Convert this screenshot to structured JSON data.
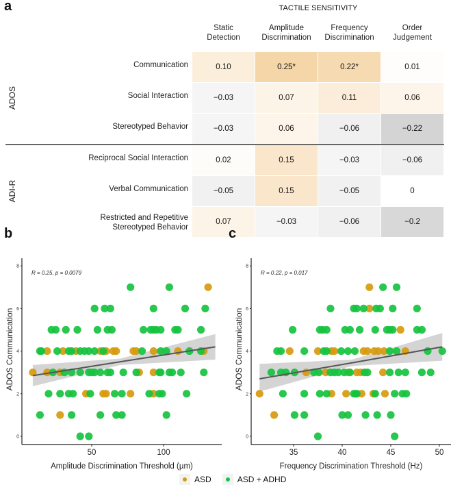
{
  "panels": {
    "a": "a",
    "b": "b",
    "c": "c"
  },
  "colors": {
    "asd": "#d69a0e",
    "asd_adhd": "#16c23f",
    "fit_line": "#555555",
    "ci_band": "#cccccc",
    "pos": "#f5d6a8",
    "neg": "#cfcfcf"
  },
  "chart_data": [
    {
      "type": "heatmap",
      "title": "TACTILE SENSITIVITY",
      "columns": [
        "Static\nDetection",
        "Amplitude\nDiscrimination",
        "Frequency\nDiscrimination",
        "Order\nJudgement"
      ],
      "groups": [
        {
          "name": "ADOS",
          "rows": [
            {
              "label": "Communication",
              "values": [
                "0.10",
                "0.25*",
                "0.22*",
                "0.01"
              ]
            },
            {
              "label": "Social Interaction",
              "values": [
                "−0.03",
                "0.07",
                "0.11",
                "0.06"
              ]
            },
            {
              "label": "Stereotyped Behavior",
              "values": [
                "−0.03",
                "0.06",
                "−0.06",
                "−0.22"
              ]
            }
          ]
        },
        {
          "name": "ADI-R",
          "rows": [
            {
              "label": "Reciprocal Social Interaction",
              "values": [
                "0.02",
                "0.15",
                "−0.03",
                "−0.06"
              ]
            },
            {
              "label": "Verbal Communication",
              "values": [
                "−0.05",
                "0.15",
                "−0.05",
                "0"
              ]
            },
            {
              "label": "Restricted and Repetitive\nStereotyped Behavior",
              "values": [
                "0.07",
                "−0.03",
                "−0.06",
                "−0.2"
              ]
            }
          ]
        }
      ]
    },
    {
      "type": "scatter",
      "annotation": "R = 0.25, p = 0.0079",
      "xlabel": "Amplitude Discrimination Threshold (µm)",
      "ylabel": "ADOS Communication",
      "xlim": [
        1,
        140
      ],
      "ylim": [
        0,
        8.4
      ],
      "xticks": [
        "50",
        "100"
      ],
      "yticks": [
        "0",
        "2",
        "4",
        "6",
        "8"
      ],
      "fit": {
        "x": [
          9,
          70,
          136
        ],
        "y": [
          2.85,
          3.5,
          4.2
        ],
        "ci_lower": [
          2.35,
          3.35,
          3.6
        ],
        "ci_upper": [
          3.35,
          3.65,
          4.8
        ]
      },
      "series": [
        {
          "name": "ASD",
          "points": [
            [
              131,
              7
            ],
            [
              19,
              4
            ],
            [
              30,
              4
            ],
            [
              39,
              4
            ],
            [
              56,
              4
            ],
            [
              60,
              4
            ],
            [
              65,
              4
            ],
            [
              67,
              4
            ],
            [
              79,
              4
            ],
            [
              81,
              4
            ],
            [
              93,
              4
            ],
            [
              110,
              4
            ],
            [
              128,
              4
            ],
            [
              9,
              3
            ],
            [
              19,
              3
            ],
            [
              28,
              3
            ],
            [
              83,
              3
            ],
            [
              93,
              3
            ],
            [
              46,
              2
            ],
            [
              58,
              2
            ],
            [
              60,
              2
            ],
            [
              77,
              2
            ],
            [
              93,
              2
            ],
            [
              28,
              1
            ]
          ]
        },
        {
          "name": "ASD + ADHD",
          "points": [
            [
              77,
              7
            ],
            [
              104,
              7
            ],
            [
              52,
              6
            ],
            [
              59,
              6
            ],
            [
              63,
              6
            ],
            [
              93,
              6
            ],
            [
              115,
              6
            ],
            [
              129,
              6
            ],
            [
              22,
              5
            ],
            [
              25,
              5
            ],
            [
              32,
              5
            ],
            [
              40,
              5
            ],
            [
              54,
              5
            ],
            [
              61,
              5
            ],
            [
              64,
              5
            ],
            [
              86,
              5
            ],
            [
              91,
              5
            ],
            [
              93,
              5
            ],
            [
              95,
              5
            ],
            [
              98,
              5
            ],
            [
              108,
              5
            ],
            [
              110,
              5
            ],
            [
              126,
              5
            ],
            [
              14,
              4
            ],
            [
              15,
              4
            ],
            [
              26,
              4
            ],
            [
              34,
              4
            ],
            [
              36,
              4
            ],
            [
              42,
              4
            ],
            [
              45,
              4
            ],
            [
              48,
              4
            ],
            [
              52,
              4
            ],
            [
              58,
              4
            ],
            [
              85,
              4
            ],
            [
              98,
              4
            ],
            [
              102,
              4
            ],
            [
              118,
              4
            ],
            [
              126,
              4
            ],
            [
              23,
              3
            ],
            [
              31,
              3
            ],
            [
              36,
              3
            ],
            [
              42,
              3
            ],
            [
              48,
              3
            ],
            [
              50,
              3
            ],
            [
              52,
              3
            ],
            [
              56,
              3
            ],
            [
              61,
              3
            ],
            [
              63,
              3
            ],
            [
              72,
              3
            ],
            [
              81,
              3
            ],
            [
              97,
              3
            ],
            [
              98,
              3
            ],
            [
              104,
              3
            ],
            [
              106,
              3
            ],
            [
              112,
              3
            ],
            [
              128,
              3
            ],
            [
              20,
              2
            ],
            [
              28,
              2
            ],
            [
              34,
              2
            ],
            [
              37,
              2
            ],
            [
              49,
              2
            ],
            [
              66,
              2
            ],
            [
              71,
              2
            ],
            [
              90,
              2
            ],
            [
              97,
              2
            ],
            [
              99,
              2
            ],
            [
              116,
              2
            ],
            [
              14,
              1
            ],
            [
              36,
              1
            ],
            [
              56,
              1
            ],
            [
              67,
              1
            ],
            [
              71,
              1
            ],
            [
              102,
              1
            ],
            [
              42,
              0
            ],
            [
              48,
              0
            ]
          ]
        }
      ]
    },
    {
      "type": "scatter",
      "annotation": "R = 0.22, p = 0.017",
      "xlabel": "Frequency Discrimination Threshold (Hz)",
      "ylabel": "ADOS Communication",
      "xlim": [
        30.6,
        51.2
      ],
      "ylim": [
        0,
        8.4
      ],
      "xticks": [
        "35",
        "40",
        "45",
        "50"
      ],
      "yticks": [
        "0",
        "2",
        "4",
        "6",
        "8"
      ],
      "fit": {
        "x": [
          31.5,
          41,
          50.3
        ],
        "y": [
          2.7,
          3.45,
          4.2
        ],
        "ci_lower": [
          2.1,
          3.3,
          3.55
        ],
        "ci_upper": [
          3.4,
          3.6,
          4.85
        ]
      },
      "series": [
        {
          "name": "ASD",
          "points": [
            [
              42.8,
              7
            ],
            [
              42.8,
              6
            ],
            [
              46,
              5
            ],
            [
              34.6,
              4
            ],
            [
              37.5,
              4
            ],
            [
              38.9,
              4
            ],
            [
              39.2,
              4
            ],
            [
              42.2,
              4
            ],
            [
              42.6,
              4
            ],
            [
              43.3,
              4
            ],
            [
              43.7,
              4
            ],
            [
              44.3,
              4
            ],
            [
              46.5,
              4
            ],
            [
              36.3,
              3
            ],
            [
              38.3,
              3
            ],
            [
              40.6,
              3
            ],
            [
              41.5,
              3
            ],
            [
              41.9,
              3
            ],
            [
              44.2,
              3
            ],
            [
              31.5,
              2
            ],
            [
              38.9,
              2
            ],
            [
              40.4,
              2
            ],
            [
              42,
              2
            ],
            [
              43.2,
              2
            ],
            [
              44.4,
              2
            ],
            [
              33,
              1
            ]
          ]
        },
        {
          "name": "ASD + ADHD",
          "points": [
            [
              44.2,
              7
            ],
            [
              45.6,
              7
            ],
            [
              38.8,
              6
            ],
            [
              41.2,
              6
            ],
            [
              41.5,
              6
            ],
            [
              42.2,
              6
            ],
            [
              43.5,
              6
            ],
            [
              43.9,
              6
            ],
            [
              45.2,
              6
            ],
            [
              47.7,
              6
            ],
            [
              34.9,
              5
            ],
            [
              37.7,
              5
            ],
            [
              38,
              5
            ],
            [
              38.4,
              5
            ],
            [
              40.3,
              5
            ],
            [
              40.8,
              5
            ],
            [
              41.8,
              5
            ],
            [
              43.4,
              5
            ],
            [
              44.6,
              5
            ],
            [
              44.9,
              5
            ],
            [
              45.2,
              5
            ],
            [
              47.7,
              5
            ],
            [
              48.2,
              5
            ],
            [
              33.3,
              4
            ],
            [
              33.7,
              4
            ],
            [
              36.1,
              4
            ],
            [
              38.1,
              4
            ],
            [
              38.4,
              4
            ],
            [
              39.9,
              4
            ],
            [
              40.6,
              4
            ],
            [
              41.3,
              4
            ],
            [
              44.9,
              4
            ],
            [
              45.6,
              4
            ],
            [
              48.8,
              4
            ],
            [
              50.3,
              4
            ],
            [
              32.7,
              3
            ],
            [
              33.7,
              3
            ],
            [
              34.2,
              3
            ],
            [
              35.1,
              3
            ],
            [
              37.1,
              3
            ],
            [
              37.6,
              3
            ],
            [
              38.8,
              3
            ],
            [
              39.2,
              3
            ],
            [
              39.6,
              3
            ],
            [
              40.2,
              3
            ],
            [
              40.8,
              3
            ],
            [
              42.3,
              3
            ],
            [
              42.6,
              3
            ],
            [
              44.9,
              3
            ],
            [
              45.8,
              3
            ],
            [
              46.5,
              3
            ],
            [
              48.2,
              3
            ],
            [
              49.1,
              3
            ],
            [
              33.9,
              2
            ],
            [
              36.1,
              2
            ],
            [
              37.7,
              2
            ],
            [
              38.4,
              2
            ],
            [
              41.2,
              2
            ],
            [
              41.4,
              2
            ],
            [
              41.5,
              2
            ],
            [
              43.4,
              2
            ],
            [
              45.4,
              2
            ],
            [
              46.2,
              2
            ],
            [
              46.6,
              2
            ],
            [
              35.1,
              1
            ],
            [
              36.1,
              1
            ],
            [
              40,
              1
            ],
            [
              40.6,
              1
            ],
            [
              42.4,
              1
            ],
            [
              43.6,
              1
            ],
            [
              45,
              1
            ],
            [
              37.5,
              0
            ],
            [
              45.4,
              0
            ]
          ]
        }
      ]
    }
  ],
  "legend": {
    "items": [
      "ASD",
      "ASD + ADHD"
    ]
  }
}
